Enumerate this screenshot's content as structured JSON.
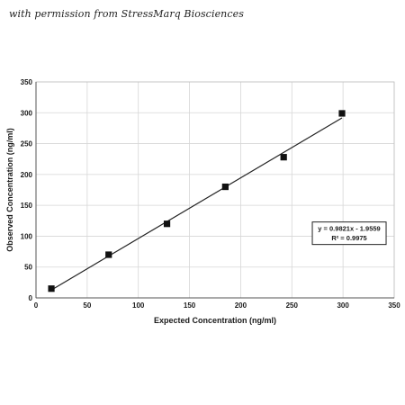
{
  "credit": "with permission from StressMarq Biosciences",
  "chart_data": {
    "type": "scatter",
    "xlabel": "Expected Concentration (ng/ml)",
    "ylabel": "Observed Concentration (ng/ml)",
    "xlim": [
      0,
      350
    ],
    "ylim": [
      0,
      350
    ],
    "xticks": [
      0,
      50,
      100,
      150,
      200,
      250,
      300,
      350
    ],
    "yticks": [
      0,
      50,
      100,
      150,
      200,
      250,
      300,
      350
    ],
    "grid": true,
    "marker": "square",
    "marker_color": "#111111",
    "line_color": "#222222",
    "series": [
      {
        "x": [
          15,
          71,
          128,
          185,
          242,
          299
        ],
        "y": [
          15,
          70,
          120,
          180,
          228,
          299
        ]
      }
    ],
    "trendline": {
      "type": "linear",
      "slope": 0.9821,
      "intercept": -1.9559,
      "x_range": [
        15,
        299
      ]
    },
    "annotation": {
      "equation": "y = 0.9821x - 1.9559",
      "r_squared": "R² = 0.9975",
      "at": [
        270,
        123
      ]
    }
  }
}
